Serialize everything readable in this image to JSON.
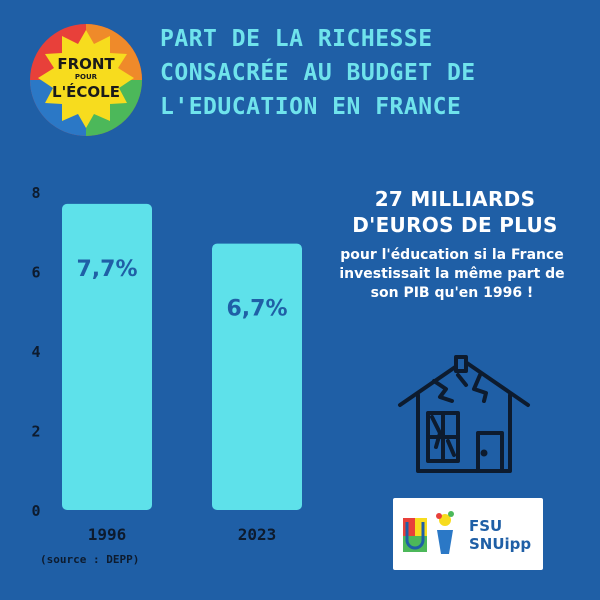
{
  "logo": {
    "line1": "FRONT",
    "line2": "POUR",
    "line3": "L'ÉCOLE"
  },
  "title": {
    "line1": "PART DE LA RICHESSE",
    "line2": "CONSACRÉE AU BUDGET DE",
    "line3": "L'EDUCATION EN FRANCE"
  },
  "chart_data": {
    "type": "bar",
    "categories": [
      "1996",
      "2023"
    ],
    "values": [
      7.7,
      6.7
    ],
    "data_labels": [
      "7,7%",
      "6,7%"
    ],
    "yticks": [
      "0",
      "2",
      "4",
      "6",
      "8"
    ],
    "ylim": [
      0,
      8
    ],
    "bar_color": "#5ee1ea",
    "label_color": "#1f5fa6",
    "grid": false
  },
  "headline": {
    "line1": "27 MILLIARDS",
    "line2": "D'EUROS DE PLUS"
  },
  "subtext": {
    "line1": "pour l'éducation si la France",
    "line2": "investissait la même part de",
    "line3": "son PIB qu'en 1996 !"
  },
  "house_icon": "broken-house-icon",
  "union_logo": {
    "line1": "FSU",
    "line2": "SNUipp"
  },
  "source": "(source : DEPP)",
  "colors": {
    "background": "#1f5fa6",
    "accent": "#6fe3ec",
    "logo_yellow": "#f7dc1e"
  }
}
